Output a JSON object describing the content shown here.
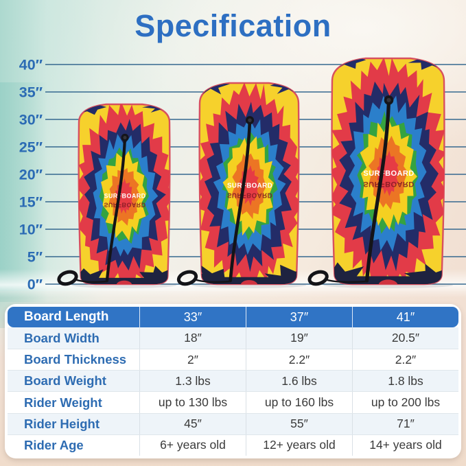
{
  "title": "Specification",
  "ruler": {
    "labels": [
      "40″",
      "35″",
      "30″",
      "25″",
      "20″",
      "15″",
      "10″",
      "5″",
      "0″"
    ]
  },
  "boards": {
    "logo_text": "SURFBOARD",
    "count": 3
  },
  "table": {
    "header": {
      "label": "Board Length",
      "values": [
        "33″",
        "37″",
        "41″"
      ]
    },
    "rows": [
      {
        "label": "Board Width",
        "values": [
          "18″",
          "19″",
          "20.5″"
        ]
      },
      {
        "label": "Board Thickness",
        "values": [
          "2″",
          "2.2″",
          "2.2″"
        ]
      },
      {
        "label": "Board Weight",
        "values": [
          "1.3 lbs",
          "1.6 lbs",
          "1.8 lbs"
        ]
      },
      {
        "label": "Rider Weight",
        "values": [
          "up to 130 lbs",
          "up to 160 lbs",
          "up to 200 lbs"
        ]
      },
      {
        "label": "Rider Height",
        "values": [
          "45″",
          "55″",
          "71″"
        ]
      },
      {
        "label": "Rider Age",
        "values": [
          "6+ years old",
          "12+ years old",
          "14+ years old"
        ]
      }
    ]
  },
  "colors": {
    "title_blue": "#2d6fc2",
    "table_header_bg": "#3074c5",
    "row_label_blue": "#2e6cb2",
    "ruler_label_blue": "#2b6bb4",
    "ruler_line": "#35688f",
    "board": {
      "base_yellow": "#f6d12c",
      "rim_red": "#d8505e",
      "ring_red": "#e23b48",
      "ring_navy": "#232c68",
      "ring_blue": "#2b7fcb",
      "ring_green": "#35a340",
      "ring_yellow": "#f5d021",
      "ring_orange": "#ec7524",
      "ring_center_red": "#e63b44",
      "tail_navy": "#1e2340",
      "notch_red": "#cf3340",
      "leash_black": "#141418",
      "logo_white": "#ffffff",
      "logo_mirror": "#7d1723"
    }
  }
}
